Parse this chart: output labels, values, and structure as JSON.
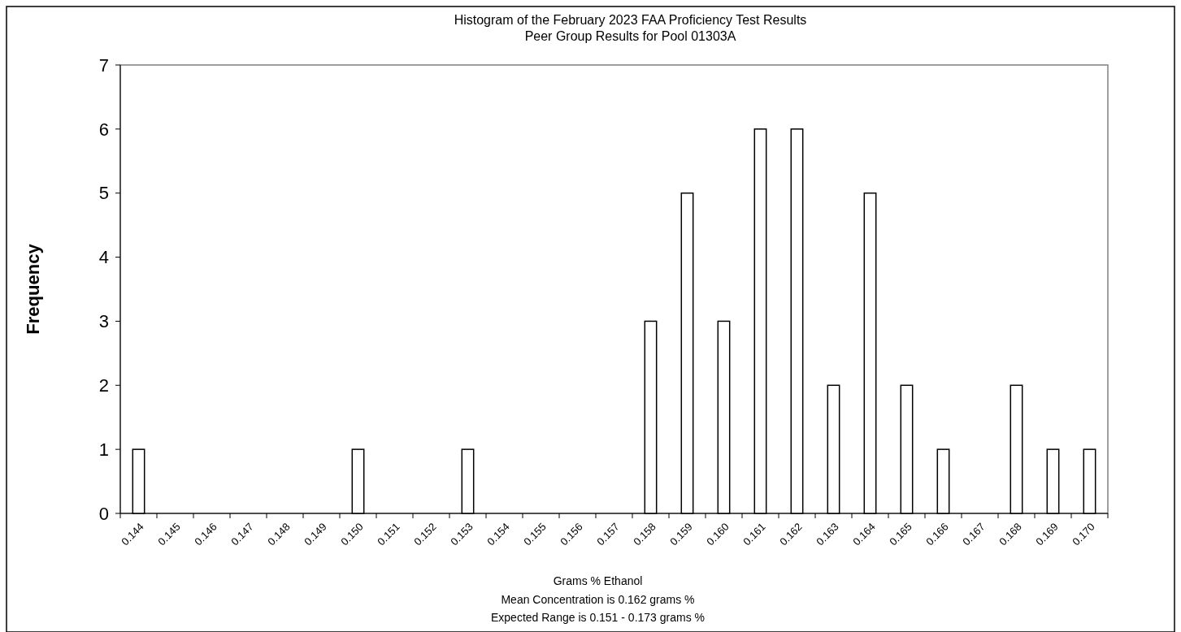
{
  "chart_data": {
    "type": "bar",
    "title": "Histogram of the February  2023 FAA Proficiency Test  Results",
    "subtitle": "Peer Group Results for Pool  01303A",
    "xlabel": "Grams % Ethanol",
    "ylabel": "Frequency",
    "annotations": [
      "Mean Concentration is 0.162 grams %",
      "Expected Range is 0.151 - 0.173 grams %"
    ],
    "categories": [
      "0.144",
      "0.145",
      "0.146",
      "0.147",
      "0.148",
      "0.149",
      "0.150",
      "0.151",
      "0.152",
      "0.153",
      "0.154",
      "0.155",
      "0.156",
      "0.157",
      "0.158",
      "0.159",
      "0.160",
      "0.161",
      "0.162",
      "0.163",
      "0.164",
      "0.165",
      "0.166",
      "0.167",
      "0.168",
      "0.169",
      "0.170"
    ],
    "values": [
      1,
      0,
      0,
      0,
      0,
      0,
      1,
      0,
      0,
      1,
      0,
      0,
      0,
      0,
      3,
      5,
      3,
      6,
      6,
      2,
      5,
      2,
      1,
      0,
      2,
      1,
      1
    ],
    "color": "#ffffff",
    "ylim": [
      0,
      7
    ],
    "yticks": [
      0,
      1,
      2,
      3,
      4,
      5,
      6,
      7
    ],
    "grid": false
  }
}
